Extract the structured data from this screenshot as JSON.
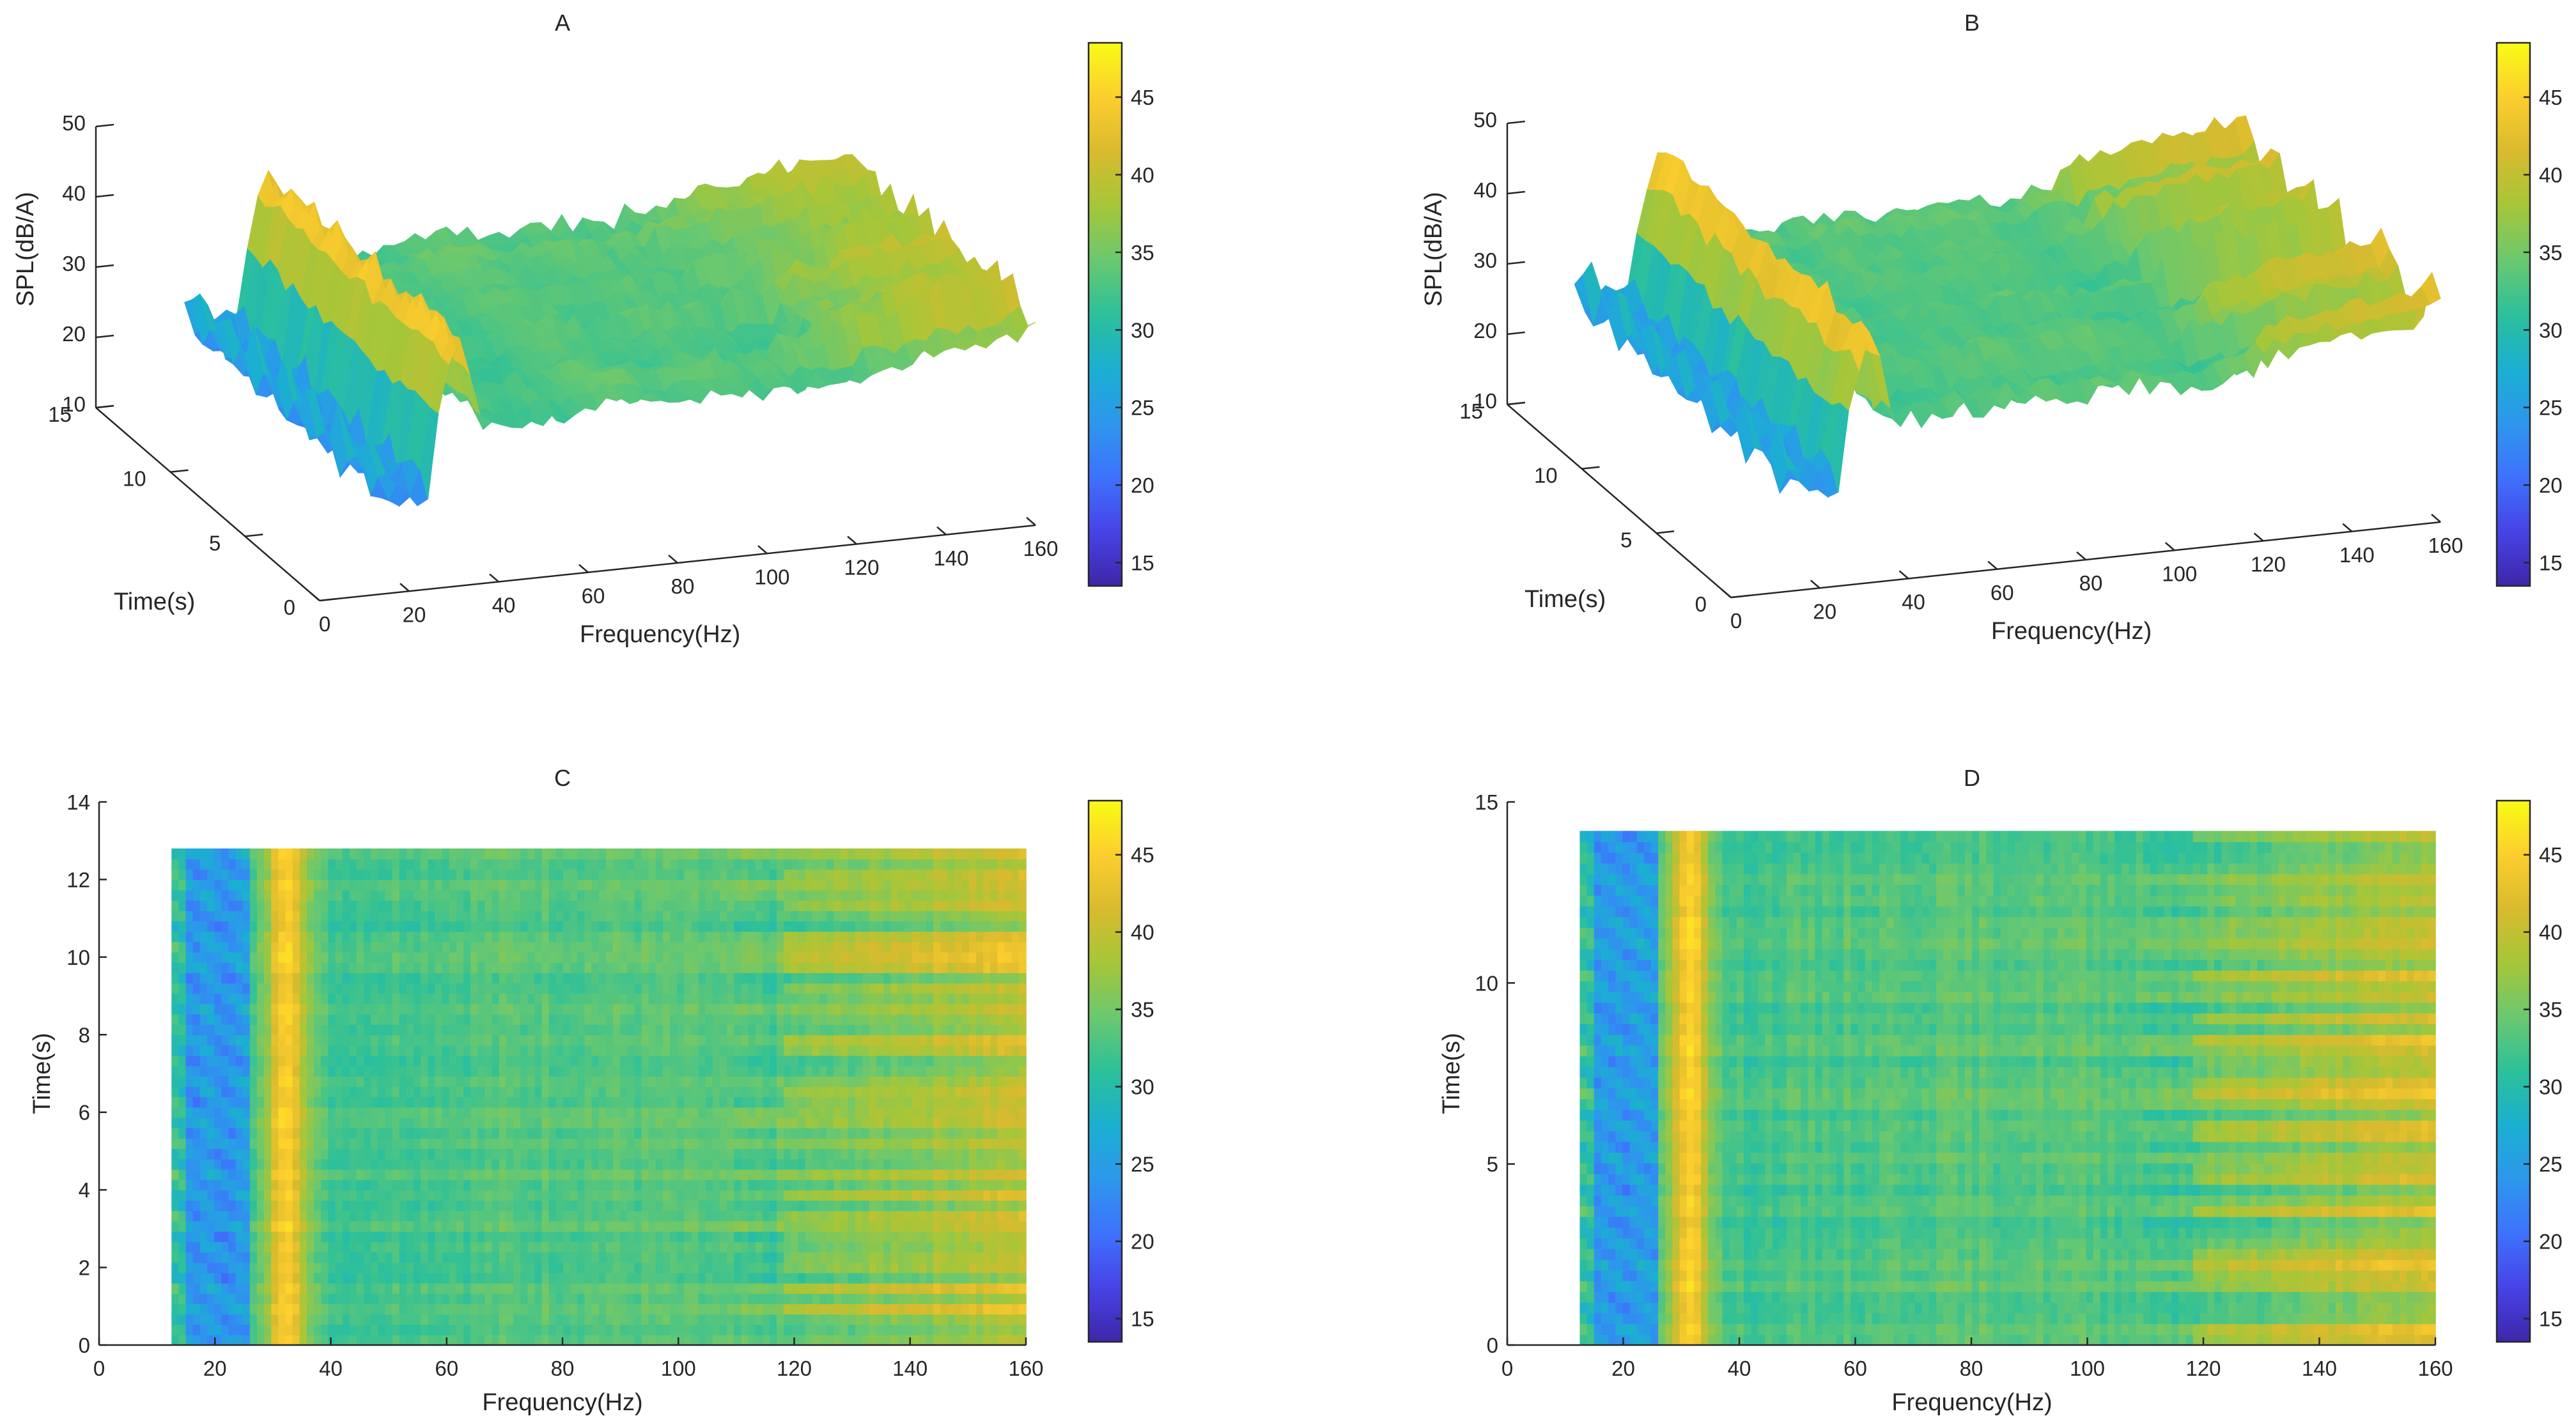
{
  "figure": {
    "colormap": [
      "#3e26a8",
      "#4743e6",
      "#3e72fc",
      "#2d97ec",
      "#1bafd1",
      "#2cc09b",
      "#6ac86f",
      "#a6c639",
      "#d9ba2e",
      "#fcce2e",
      "#f9fb15"
    ],
    "colorbar_ticks": [
      "15",
      "20",
      "25",
      "30",
      "35",
      "40",
      "45"
    ],
    "colorbar_range": [
      13.5,
      48.5
    ]
  },
  "chart_data": [
    {
      "panel": "A",
      "type": "surface3d",
      "title": "A",
      "xlabel": "Frequency(Hz)",
      "ylabel": "Time(s)",
      "zlabel": "SPL(dB/A)",
      "xticks": [
        "0",
        "20",
        "40",
        "60",
        "80",
        "100",
        "120",
        "140",
        "160"
      ],
      "yticks": [
        "0",
        "5",
        "10",
        "15"
      ],
      "zticks": [
        "10",
        "20",
        "30",
        "40",
        "50"
      ],
      "xlim": [
        0,
        160
      ],
      "ylim": [
        0,
        15
      ],
      "zlim": [
        10,
        50
      ],
      "time_max": 12.8,
      "peak_freq_hz": 31,
      "seed": 7
    },
    {
      "panel": "B",
      "type": "surface3d",
      "title": "B",
      "xlabel": "Frequency(Hz)",
      "ylabel": "Time(s)",
      "zlabel": "SPL(dB/A)",
      "xticks": [
        "0",
        "20",
        "40",
        "60",
        "80",
        "100",
        "120",
        "140",
        "160"
      ],
      "yticks": [
        "0",
        "5",
        "10",
        "15"
      ],
      "zticks": [
        "10",
        "20",
        "30",
        "40",
        "50"
      ],
      "xlim": [
        0,
        160
      ],
      "ylim": [
        0,
        15
      ],
      "zlim": [
        10,
        50
      ],
      "time_max": 14.2,
      "peak_freq_hz": 31,
      "seed": 19
    },
    {
      "panel": "C",
      "type": "heatmap",
      "title": "C",
      "xlabel": "Frequency(Hz)",
      "ylabel": "Time(s)",
      "xticks": [
        "0",
        "20",
        "40",
        "60",
        "80",
        "100",
        "120",
        "140",
        "160"
      ],
      "yticks": [
        "0",
        "2",
        "4",
        "6",
        "8",
        "10",
        "12",
        "14"
      ],
      "xlim": [
        0,
        160
      ],
      "ylim": [
        0,
        14
      ],
      "freq_range": [
        12.5,
        160
      ],
      "time_max": 12.8,
      "peak_freq_hz": 32,
      "seed": 7
    },
    {
      "panel": "D",
      "type": "heatmap",
      "title": "D",
      "xlabel": "Frequency(Hz)",
      "ylabel": "Time(s)",
      "xticks": [
        "0",
        "20",
        "40",
        "60",
        "80",
        "100",
        "120",
        "140",
        "160"
      ],
      "yticks": [
        "0",
        "5",
        "10",
        "15"
      ],
      "xlim": [
        0,
        160
      ],
      "ylim": [
        0,
        15
      ],
      "freq_range": [
        12.5,
        160
      ],
      "time_max": 14.2,
      "peak_freq_hz": 31,
      "seed": 19
    }
  ]
}
